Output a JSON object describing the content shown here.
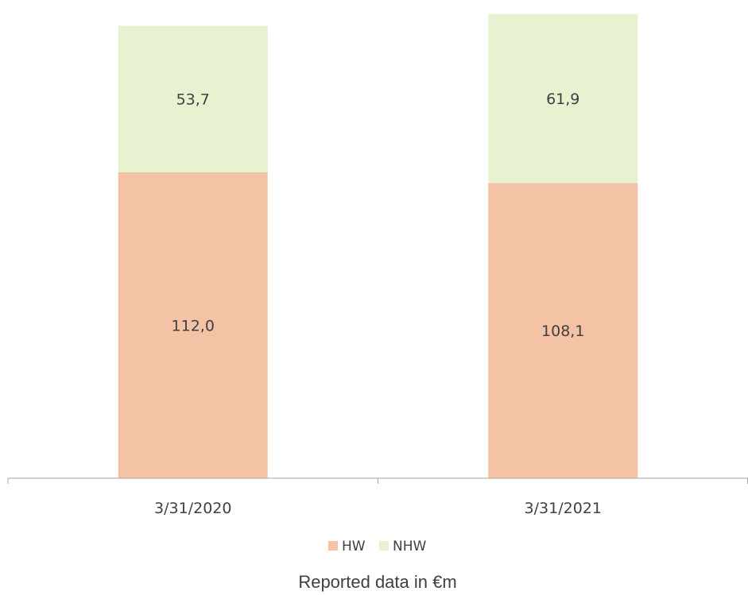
{
  "chart_data": {
    "type": "bar",
    "stacked": true,
    "categories": [
      "3/31/2020",
      "3/31/2021"
    ],
    "series": [
      {
        "name": "HW",
        "values": [
          112.0,
          108.1
        ],
        "labels": [
          "112,0",
          "108,1"
        ],
        "color": "#f4c3a5"
      },
      {
        "name": "NHW",
        "values": [
          53.7,
          61.9
        ],
        "labels": [
          "53,7",
          "61,9"
        ],
        "color": "#e8f2d1"
      }
    ],
    "ylim": [
      0,
      170
    ],
    "grid": false,
    "legend": "bottom",
    "axis_color": "#a6a6a6",
    "caption": "Reported data in €m"
  }
}
